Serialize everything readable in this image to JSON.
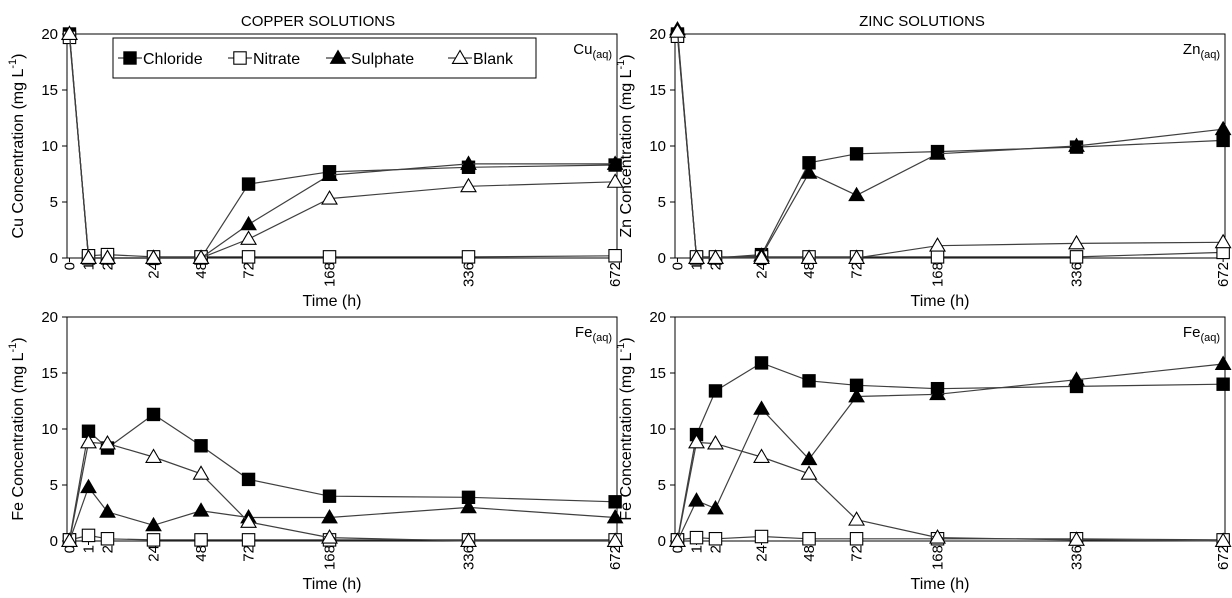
{
  "figure_titles": [
    "COPPER SOLUTIONS",
    "ZINC SOLUTIONS"
  ],
  "legend": {
    "entries": [
      {
        "label": "Chloride",
        "marker": "square-filled"
      },
      {
        "label": "Nitrate",
        "marker": "square-open"
      },
      {
        "label": "Sulphate",
        "marker": "triangle-filled"
      },
      {
        "label": "Blank",
        "marker": "triangle-open"
      }
    ]
  },
  "colors": {
    "line": "#3f3f3f",
    "marker": "#000000",
    "axis": "#000000"
  },
  "chart_data": [
    {
      "type": "line",
      "title": "COPPER SOLUTIONS",
      "panel_label": {
        "main": "Cu",
        "sub": "(aq)"
      },
      "xlabel": "Time (h)",
      "ylabel": "Cu Concentration (mg L-1)",
      "x_ticks": [
        "0",
        "1",
        "2",
        "24",
        "48",
        "72",
        "168",
        "336",
        "672"
      ],
      "y_ticks": [
        "0",
        "5",
        "10",
        "15",
        "20"
      ],
      "ylim": [
        0,
        20
      ],
      "grid": false,
      "legend_position": "top",
      "series": [
        {
          "name": "Chloride",
          "values": [
            20,
            0,
            0,
            0,
            0,
            6.6,
            7.7,
            8.1,
            8.3
          ]
        },
        {
          "name": "Nitrate",
          "values": [
            19.7,
            0.2,
            0.3,
            0.1,
            0.1,
            0.1,
            0.1,
            0.1,
            0.2
          ]
        },
        {
          "name": "Sulphate",
          "values": [
            20,
            0,
            0,
            0,
            0,
            3.0,
            7.4,
            8.4,
            8.4
          ]
        },
        {
          "name": "Blank",
          "values": [
            20,
            0,
            0,
            0,
            0,
            1.7,
            5.3,
            6.4,
            6.8
          ]
        }
      ]
    },
    {
      "type": "line",
      "title": "ZINC SOLUTIONS",
      "panel_label": {
        "main": "Zn",
        "sub": "(aq)"
      },
      "xlabel": "Time (h)",
      "ylabel": "Zn Concentration (mg L-1)",
      "x_ticks": [
        "0",
        "1",
        "2",
        "24",
        "48",
        "72",
        "168",
        "336",
        "672"
      ],
      "y_ticks": [
        "0",
        "5",
        "10",
        "15",
        "20"
      ],
      "ylim": [
        0,
        20
      ],
      "grid": false,
      "series": [
        {
          "name": "Chloride",
          "values": [
            20,
            0,
            0,
            0.3,
            8.5,
            9.3,
            9.5,
            9.9,
            10.5
          ]
        },
        {
          "name": "Nitrate",
          "values": [
            19.8,
            0.1,
            0.1,
            0.1,
            0.1,
            0.1,
            0.1,
            0.1,
            0.5
          ]
        },
        {
          "name": "Sulphate",
          "values": [
            20.4,
            0,
            0,
            0.2,
            7.6,
            5.6,
            9.3,
            10.0,
            11.5
          ]
        },
        {
          "name": "Blank",
          "values": [
            20.2,
            0,
            0,
            0,
            0,
            0,
            1.1,
            1.3,
            1.4
          ]
        }
      ]
    },
    {
      "type": "line",
      "panel_label": {
        "main": "Fe",
        "sub": "(aq)"
      },
      "xlabel": "Time (h)",
      "ylabel": "Fe Concentration (mg L-1)",
      "x_ticks": [
        "0",
        "1",
        "2",
        "24",
        "48",
        "72",
        "168",
        "336",
        "672"
      ],
      "y_ticks": [
        "0",
        "5",
        "10",
        "15",
        "20"
      ],
      "ylim": [
        0,
        20
      ],
      "grid": false,
      "series": [
        {
          "name": "Chloride",
          "values": [
            0.1,
            9.8,
            8.3,
            11.3,
            8.5,
            5.5,
            4.0,
            3.9,
            3.5
          ]
        },
        {
          "name": "Nitrate",
          "values": [
            0.1,
            0.5,
            0.2,
            0.1,
            0.1,
            0.1,
            0.1,
            0.1,
            0.1
          ]
        },
        {
          "name": "Sulphate",
          "values": [
            0,
            4.8,
            2.6,
            1.4,
            2.7,
            2.1,
            2.1,
            3.0,
            2.1
          ]
        },
        {
          "name": "Blank",
          "values": [
            0,
            8.8,
            8.7,
            7.5,
            6.0,
            1.7,
            0.3,
            0.0,
            0.0
          ]
        }
      ]
    },
    {
      "type": "line",
      "panel_label": {
        "main": "Fe",
        "sub": "(aq)"
      },
      "xlabel": "Time (h)",
      "ylabel": "Fe Concentration (mg L-1)",
      "x_ticks": [
        "0",
        "1",
        "2",
        "24",
        "48",
        "72",
        "168",
        "336",
        "672"
      ],
      "y_ticks": [
        "0",
        "5",
        "10",
        "15",
        "20"
      ],
      "ylim": [
        0,
        20
      ],
      "grid": false,
      "series": [
        {
          "name": "Chloride",
          "values": [
            0.1,
            9.5,
            13.4,
            15.9,
            14.3,
            13.9,
            13.6,
            13.8,
            14.0
          ]
        },
        {
          "name": "Nitrate",
          "values": [
            0.1,
            0.3,
            0.2,
            0.4,
            0.2,
            0.2,
            0.2,
            0.2,
            0.1
          ]
        },
        {
          "name": "Sulphate",
          "values": [
            0,
            3.6,
            2.9,
            11.8,
            7.3,
            12.9,
            13.1,
            14.4,
            15.8
          ]
        },
        {
          "name": "Blank",
          "values": [
            0,
            8.8,
            8.7,
            7.5,
            6.0,
            1.9,
            0.3,
            0.1,
            0.0
          ]
        }
      ]
    }
  ]
}
